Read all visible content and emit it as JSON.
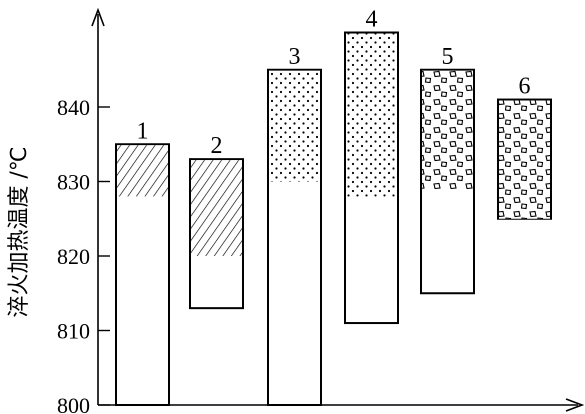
{
  "chart_data": {
    "type": "bar",
    "subtype": "floating-range",
    "ylabel": "淬火加热温度 /℃",
    "ylim": [
      800,
      846
    ],
    "yticks": [
      800,
      810,
      820,
      830,
      840
    ],
    "grid": false,
    "legend": "none",
    "colors": {
      "stroke": "#000000",
      "background": "#ffffff"
    },
    "bars": [
      {
        "label": "1",
        "low": 800,
        "high": 835,
        "fill_from": 828,
        "fill_to": 835,
        "pattern": "hatch"
      },
      {
        "label": "2",
        "low": 813,
        "high": 833,
        "fill_from": 820,
        "fill_to": 833,
        "pattern": "hatch"
      },
      {
        "label": "3",
        "low": 800,
        "high": 845,
        "fill_from": 830,
        "fill_to": 845,
        "pattern": "dots"
      },
      {
        "label": "4",
        "low": 811,
        "high": 850,
        "fill_from": 828,
        "fill_to": 850,
        "pattern": "dots"
      },
      {
        "label": "5",
        "low": 815,
        "high": 845,
        "fill_from": 829,
        "fill_to": 845,
        "pattern": "blocks"
      },
      {
        "label": "6",
        "low": 825,
        "high": 841,
        "fill_from": 825,
        "fill_to": 841,
        "pattern": "blocks"
      }
    ]
  }
}
